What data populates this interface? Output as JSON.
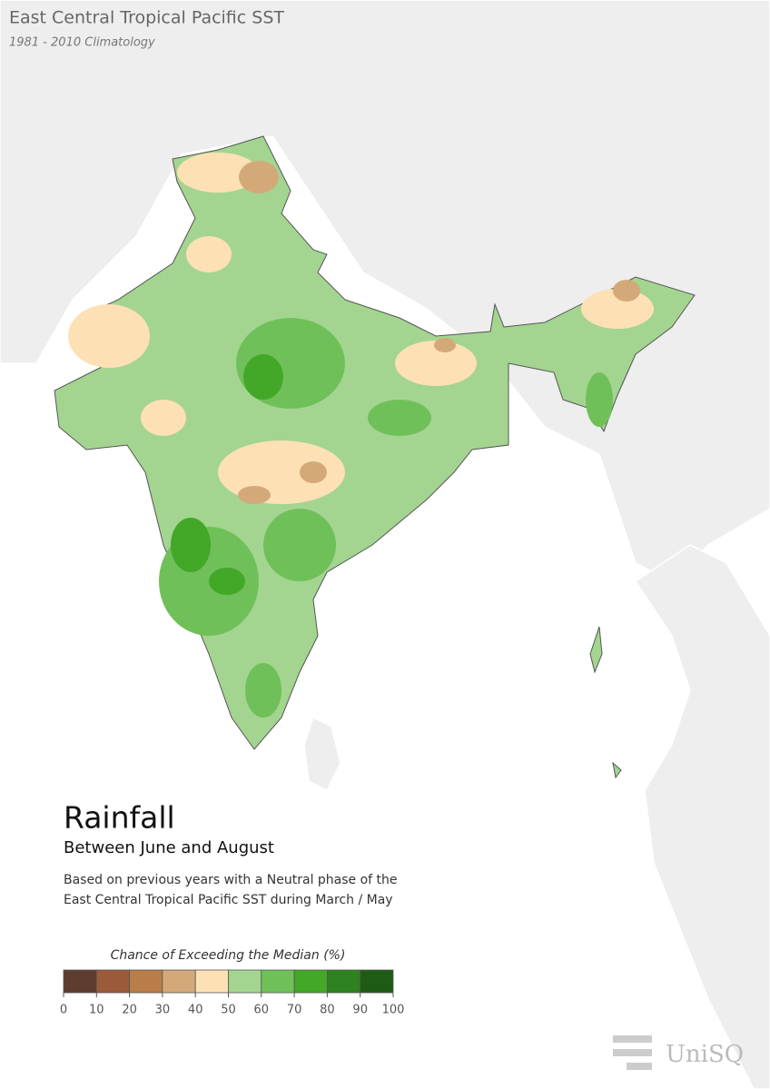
{
  "header": {
    "title": "East Central Tropical Pacific SST",
    "subtitle": "1981 - 2010 Climatology"
  },
  "panel": {
    "title": "Rainfall",
    "subtitle": "Between June and August",
    "description": [
      "Based on previous years with a Neutral phase of the",
      "East Central Tropical Pacific SST during March / May"
    ]
  },
  "legend": {
    "title": "Chance of Exceeding the Median (%)",
    "bins": [
      0,
      10,
      20,
      30,
      40,
      50,
      60,
      70,
      80,
      90,
      100
    ],
    "colors": [
      "#5e3c2e",
      "#9b5b3a",
      "#b87d48",
      "#d4a97a",
      "#fde0b4",
      "#a3d590",
      "#70c05a",
      "#43a728",
      "#2e8220",
      "#1e5c16"
    ]
  },
  "logo": {
    "text": "UniSQ"
  }
}
